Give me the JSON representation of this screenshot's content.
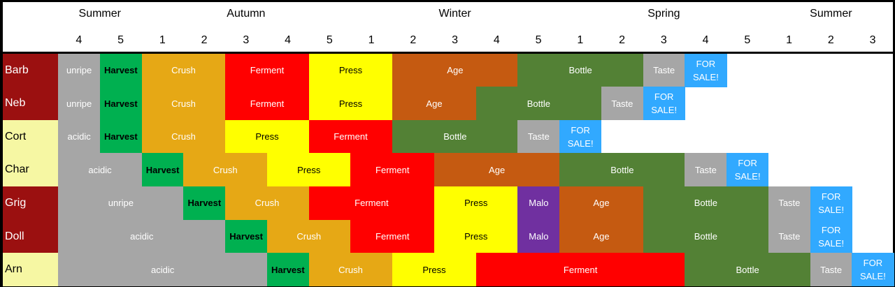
{
  "colors": {
    "unripe": "#A6A6A6",
    "acidic": "#A6A6A6",
    "Harvest": "#00B050",
    "Crush": "#E6A815",
    "Ferment": "#FF0000",
    "Press": "#FFFF00",
    "Age": "#C55A11",
    "Bottle": "#538135",
    "Taste": "#A6A6A6",
    "Malo": "#7030A0",
    "FOR SALE!": "#31A9FF",
    "label_dark": "#9B1010",
    "label_light": "#F6F7A3"
  },
  "chart_data": {
    "type": "table",
    "seasons": [
      "Summer",
      "Autumn",
      "Winter",
      "Spring",
      "Summer"
    ],
    "season_spans": [
      2,
      5,
      5,
      5,
      3
    ],
    "weeks": [
      "4",
      "5",
      "1",
      "2",
      "3",
      "4",
      "5",
      "1",
      "2",
      "3",
      "4",
      "5",
      "1",
      "2",
      "3",
      "4",
      "5",
      "1",
      "2",
      "3"
    ],
    "rows": [
      {
        "label": "Barb",
        "tone": "dark",
        "segments": [
          {
            "label": "unripe",
            "span": 1
          },
          {
            "label": "Harvest",
            "span": 1
          },
          {
            "label": "Crush",
            "span": 2
          },
          {
            "label": "Ferment",
            "span": 2
          },
          {
            "label": "Press",
            "span": 2
          },
          {
            "label": "Age",
            "span": 3
          },
          {
            "label": "Bottle",
            "span": 3
          },
          {
            "label": "Taste",
            "span": 1
          },
          {
            "label": "FOR SALE!",
            "span": 1
          }
        ]
      },
      {
        "label": "Neb",
        "tone": "dark",
        "segments": [
          {
            "label": "unripe",
            "span": 1
          },
          {
            "label": "Harvest",
            "span": 1
          },
          {
            "label": "Crush",
            "span": 2
          },
          {
            "label": "Ferment",
            "span": 2
          },
          {
            "label": "Press",
            "span": 2
          },
          {
            "label": "Age",
            "span": 2
          },
          {
            "label": "Bottle",
            "span": 3
          },
          {
            "label": "Taste",
            "span": 1
          },
          {
            "label": "FOR SALE!",
            "span": 1
          }
        ]
      },
      {
        "label": "Cort",
        "tone": "light",
        "segments": [
          {
            "label": "acidic",
            "span": 1
          },
          {
            "label": "Harvest",
            "span": 1
          },
          {
            "label": "Crush",
            "span": 2
          },
          {
            "label": "Press",
            "span": 2
          },
          {
            "label": "Ferment",
            "span": 2
          },
          {
            "label": "Bottle",
            "span": 3
          },
          {
            "label": "Taste",
            "span": 1
          },
          {
            "label": "FOR SALE!",
            "span": 1
          }
        ]
      },
      {
        "label": "Char",
        "tone": "light",
        "segments": [
          {
            "label": "acidic",
            "span": 2
          },
          {
            "label": "Harvest",
            "span": 1
          },
          {
            "label": "Crush",
            "span": 2
          },
          {
            "label": "Press",
            "span": 2
          },
          {
            "label": "Ferment",
            "span": 2
          },
          {
            "label": "Age",
            "span": 3
          },
          {
            "label": "Bottle",
            "span": 3
          },
          {
            "label": "Taste",
            "span": 1
          },
          {
            "label": "FOR SALE!",
            "span": 1
          }
        ]
      },
      {
        "label": "Grig",
        "tone": "dark",
        "segments": [
          {
            "label": "unripe",
            "span": 3
          },
          {
            "label": "Harvest",
            "span": 1
          },
          {
            "label": "Crush",
            "span": 2
          },
          {
            "label": "Ferment",
            "span": 3
          },
          {
            "label": "Press",
            "span": 2
          },
          {
            "label": "Malo",
            "span": 1
          },
          {
            "label": "Age",
            "span": 2
          },
          {
            "label": "Bottle",
            "span": 3
          },
          {
            "label": "Taste",
            "span": 1
          },
          {
            "label": "FOR SALE!",
            "span": 1
          }
        ]
      },
      {
        "label": "Doll",
        "tone": "dark",
        "segments": [
          {
            "label": "acidic",
            "span": 4
          },
          {
            "label": "Harvest",
            "span": 1
          },
          {
            "label": "Crush",
            "span": 2
          },
          {
            "label": "Ferment",
            "span": 2
          },
          {
            "label": "Press",
            "span": 2
          },
          {
            "label": "Malo",
            "span": 1
          },
          {
            "label": "Age",
            "span": 2
          },
          {
            "label": "Bottle",
            "span": 3
          },
          {
            "label": "Taste",
            "span": 1
          },
          {
            "label": "FOR SALE!",
            "span": 1
          }
        ]
      },
      {
        "label": "Arn",
        "tone": "light",
        "segments": [
          {
            "label": "acidic",
            "span": 5
          },
          {
            "label": "Harvest",
            "span": 1
          },
          {
            "label": "Crush",
            "span": 2
          },
          {
            "label": "Press",
            "span": 2
          },
          {
            "label": "Ferment",
            "span": 5
          },
          {
            "label": "Bottle",
            "span": 3
          },
          {
            "label": "Taste",
            "span": 1
          },
          {
            "label": "FOR SALE!",
            "span": 1
          }
        ]
      }
    ]
  }
}
